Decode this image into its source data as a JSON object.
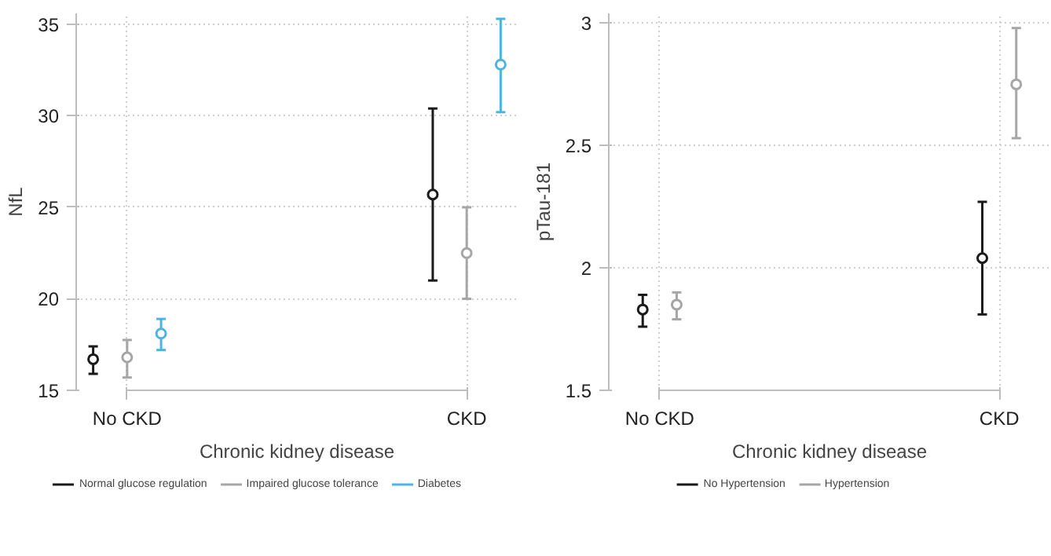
{
  "chart_data": [
    {
      "type": "scatter",
      "xlabel": "Chronic kidney disease",
      "ylabel": "NfL",
      "categories": [
        "No CKD",
        "CKD"
      ],
      "ylim": [
        15,
        35.6
      ],
      "yticks": [
        15,
        20,
        25,
        30,
        35
      ],
      "grid": true,
      "legend": "bottom",
      "marker": "circle",
      "series": [
        {
          "name": "Normal glucose regulation",
          "color": "#1a1a1a",
          "values": [
            16.7,
            25.7
          ],
          "errors": [
            [
              15.9,
              17.4
            ],
            [
              21,
              30.4
            ]
          ]
        },
        {
          "name": "Impaired glucose tolerance",
          "color": "#a6a6a6",
          "values": [
            16.8,
            22.5
          ],
          "errors": [
            [
              15.7,
              17.75
            ],
            [
              20,
              25
            ]
          ]
        },
        {
          "name": "Diabetes",
          "color": "#4fb3e0",
          "values": [
            18.1,
            32.8
          ],
          "errors": [
            [
              17.2,
              18.9
            ],
            [
              30.2,
              35.3
            ]
          ]
        }
      ]
    },
    {
      "type": "scatter",
      "xlabel": "Chronic kidney disease",
      "ylabel": "pTau-181",
      "categories": [
        "No CKD",
        "CKD"
      ],
      "ylim": [
        1.5,
        3.04
      ],
      "yticks": [
        1.5,
        2,
        2.5,
        3
      ],
      "grid": true,
      "legend": "bottom",
      "marker": "circle",
      "series": [
        {
          "name": "No Hypertension",
          "color": "#1a1a1a",
          "values": [
            1.83,
            2.04
          ],
          "errors": [
            [
              1.76,
              1.89
            ],
            [
              1.81,
              2.27
            ]
          ]
        },
        {
          "name": "Hypertension",
          "color": "#a6a6a6",
          "values": [
            1.85,
            2.75
          ],
          "errors": [
            [
              1.79,
              1.9
            ],
            [
              2.53,
              2.98
            ]
          ]
        }
      ]
    }
  ]
}
